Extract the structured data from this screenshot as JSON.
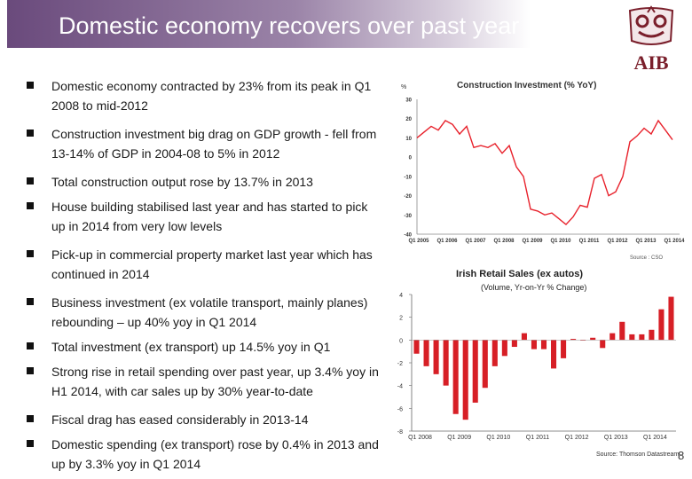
{
  "slide": {
    "title": "Domestic economy recovers over past year",
    "page_number": "8",
    "logo_text": "AIB"
  },
  "bullets": [
    "Domestic economy contracted by 23% from its peak in Q1 2008 to mid-2012",
    "Construction investment big drag on GDP growth - fell from 13-14% of GDP in 2004-08 to 5% in 2012",
    "Total construction output rose by 13.7% in 2013",
    "House building stabilised last year and has started to pick up in 2014 from very low levels",
    "Pick-up in commercial property market last year which has continued in 2014",
    "Business investment (ex volatile transport, mainly planes) rebounding – up 40% yoy in Q1 2014",
    "Total investment (ex transport) up 14.5% yoy in Q1",
    "Strong rise in retail spending over past year, up 3.4% yoy in H1 2014, with car sales up by 30% year-to-date",
    "Fiscal drag has eased considerably in 2013-14",
    "Domestic spending (ex transport) rose by 0.4% in 2013 and up by 3.3% yoy in Q1 2014"
  ],
  "chart_data": [
    {
      "type": "line",
      "title": "Construction Investment (% YoY)",
      "unit": "%",
      "source": "Source : CSO",
      "color": "#e8222c",
      "ylim": [
        -40,
        30
      ],
      "yticks": [
        30,
        20,
        10,
        0,
        -10,
        -20,
        -30,
        -40
      ],
      "xtick_labels": [
        "Q1 2005",
        "Q1 2006",
        "Q1 2007",
        "Q1 2008",
        "Q1 2009",
        "Q1 2010",
        "Q1 2011",
        "Q1 2012",
        "Q1 2013",
        "Q1 2014"
      ],
      "x_start": 2005.0,
      "x_end": 2014.25,
      "points": [
        [
          2005.0,
          10
        ],
        [
          2005.25,
          13
        ],
        [
          2005.5,
          16
        ],
        [
          2005.75,
          14
        ],
        [
          2006.0,
          19
        ],
        [
          2006.25,
          17
        ],
        [
          2006.5,
          12
        ],
        [
          2006.75,
          16
        ],
        [
          2007.0,
          5
        ],
        [
          2007.25,
          6
        ],
        [
          2007.5,
          5
        ],
        [
          2007.75,
          7
        ],
        [
          2008.0,
          2
        ],
        [
          2008.25,
          6
        ],
        [
          2008.5,
          -5
        ],
        [
          2008.75,
          -10
        ],
        [
          2009.0,
          -27
        ],
        [
          2009.25,
          -28
        ],
        [
          2009.5,
          -30
        ],
        [
          2009.75,
          -29
        ],
        [
          2010.0,
          -32
        ],
        [
          2010.25,
          -35
        ],
        [
          2010.5,
          -31
        ],
        [
          2010.75,
          -25
        ],
        [
          2011.0,
          -26
        ],
        [
          2011.25,
          -11
        ],
        [
          2011.5,
          -9
        ],
        [
          2011.75,
          -20
        ],
        [
          2012.0,
          -18
        ],
        [
          2012.25,
          -10
        ],
        [
          2012.5,
          8
        ],
        [
          2012.75,
          11
        ],
        [
          2013.0,
          15
        ],
        [
          2013.25,
          12
        ],
        [
          2013.5,
          19
        ],
        [
          2013.75,
          14
        ],
        [
          2014.0,
          9
        ]
      ]
    },
    {
      "type": "bar",
      "title": "Irish Retail Sales (ex autos)",
      "subtitle": "(Volume, Yr-on-Yr % Change)",
      "source": "Source: Thomson Datastream",
      "color": "#d71f26",
      "ylim": [
        -8,
        4
      ],
      "yticks": [
        4,
        2,
        0,
        -2,
        -4,
        -6,
        -8
      ],
      "xtick_labels": [
        {
          "label": "Q1 2008",
          "index": 0
        },
        {
          "label": "Q1 2009",
          "index": 4
        },
        {
          "label": "Q1 2010",
          "index": 8
        },
        {
          "label": "Q1 2011",
          "index": 12
        },
        {
          "label": "Q1 2012",
          "index": 16
        },
        {
          "label": "Q1 2013",
          "index": 20
        },
        {
          "label": "Q1 2014",
          "index": 24
        }
      ],
      "values": [
        -1.2,
        -2.3,
        -3.0,
        -4.0,
        -6.5,
        -7.0,
        -5.5,
        -4.2,
        -2.3,
        -1.4,
        -0.6,
        0.6,
        -0.8,
        -0.8,
        -2.5,
        -1.6,
        0.1,
        0.0,
        0.2,
        -0.7,
        0.6,
        1.6,
        0.5,
        0.5,
        0.9,
        2.7,
        3.8
      ]
    }
  ]
}
